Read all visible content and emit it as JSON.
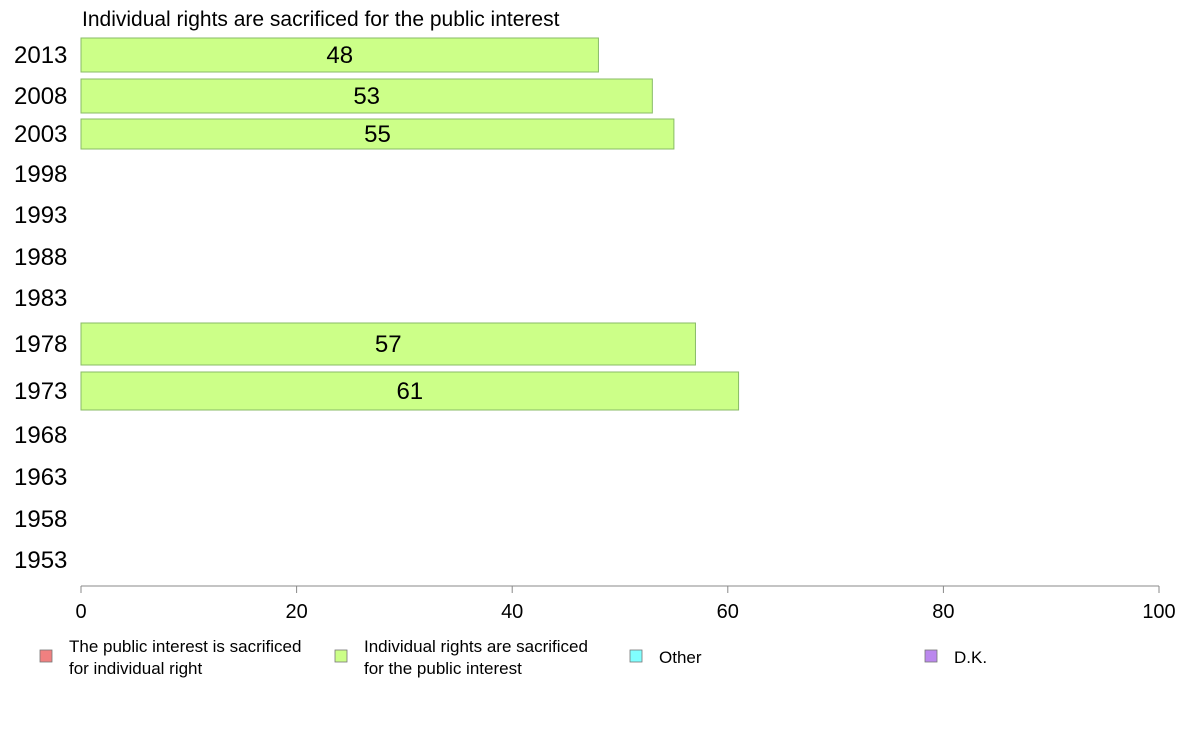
{
  "chart_data": {
    "type": "bar",
    "orientation": "horizontal",
    "title": "Individual rights are sacrificed for the public interest",
    "categories": [
      "2013",
      "2008",
      "2003",
      "1998",
      "1993",
      "1988",
      "1983",
      "1978",
      "1973",
      "1968",
      "1963",
      "1958",
      "1953"
    ],
    "series": [
      {
        "name": "Individual rights are sacrificed for the public interest",
        "color": "#ccff88",
        "values": [
          48,
          53,
          55,
          null,
          null,
          null,
          null,
          57,
          61,
          null,
          null,
          null,
          null
        ],
        "labels": [
          "48",
          "53",
          "55",
          null,
          null,
          null,
          null,
          "57",
          "61",
          null,
          null,
          null,
          null
        ]
      }
    ],
    "xlim": [
      0,
      100
    ],
    "xticks": [
      "0",
      "20",
      "40",
      "60",
      "80",
      "100"
    ],
    "grid": false,
    "legend": {
      "position": "bottom",
      "items": [
        {
          "line1": "The public interest is sacrificed",
          "line2": "for individual right",
          "color": "#f08080"
        },
        {
          "line1": "Individual rights are sacrificed",
          "line2": "for the public interest",
          "color": "#ccff88"
        },
        {
          "line1": "Other",
          "line2": "",
          "color": "#80ffff"
        },
        {
          "line1": "D.K.",
          "line2": "",
          "color": "#bb88ee"
        }
      ]
    }
  }
}
